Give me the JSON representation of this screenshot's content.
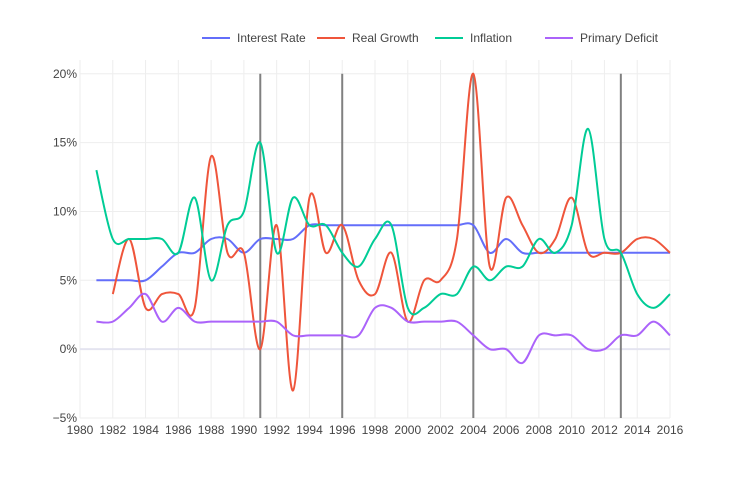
{
  "chart_data": {
    "type": "line",
    "title": "",
    "xlabel": "",
    "ylabel": "",
    "xlim": [
      1980,
      2016
    ],
    "ylim": [
      -5,
      21
    ],
    "x_ticks": [
      1980,
      1982,
      1984,
      1986,
      1988,
      1990,
      1992,
      1994,
      1996,
      1998,
      2000,
      2002,
      2004,
      2006,
      2008,
      2010,
      2012,
      2014,
      2016
    ],
    "y_ticks": [
      -5,
      0,
      5,
      10,
      15,
      20
    ],
    "y_tick_suffix": "%",
    "grid": true,
    "legend_position": "top-right",
    "vertical_lines": [
      1991,
      1996,
      2004,
      2013
    ],
    "vertical_line_color": "#808080",
    "series": [
      {
        "name": "Interest Rate",
        "color": "#636efa",
        "x": [
          1981,
          1982,
          1983,
          1984,
          1985,
          1986,
          1987,
          1988,
          1989,
          1990,
          1991,
          1992,
          1993,
          1994,
          1995,
          1996,
          1997,
          1998,
          1999,
          2000,
          2001,
          2002,
          2003,
          2004,
          2005,
          2006,
          2007,
          2008,
          2009,
          2010,
          2011,
          2012,
          2013,
          2014,
          2015,
          2016
        ],
        "values": [
          5,
          5,
          5,
          5,
          6,
          7,
          7,
          8,
          8,
          7,
          8,
          8,
          8,
          9,
          9,
          9,
          9,
          9,
          9,
          9,
          9,
          9,
          9,
          9,
          7,
          8,
          7,
          7,
          7,
          7,
          7,
          7,
          7,
          7,
          7,
          7
        ]
      },
      {
        "name": "Real Growth",
        "color": "#ef553b",
        "x": [
          1982,
          1983,
          1984,
          1985,
          1986,
          1987,
          1988,
          1989,
          1990,
          1991,
          1992,
          1993,
          1994,
          1995,
          1996,
          1997,
          1998,
          1999,
          2000,
          2001,
          2002,
          2003,
          2004,
          2005,
          2006,
          2007,
          2008,
          2009,
          2010,
          2011,
          2012,
          2013,
          2014,
          2015,
          2016
        ],
        "values": [
          4,
          8,
          3,
          4,
          4,
          3,
          14,
          7,
          7,
          0,
          9,
          -3,
          11,
          7,
          9,
          5,
          4,
          7,
          2,
          5,
          5,
          8,
          20,
          6,
          11,
          9,
          7,
          8,
          11,
          7,
          7,
          7,
          8,
          8,
          7
        ]
      },
      {
        "name": "Inflation",
        "color": "#00cc96",
        "x": [
          1981,
          1982,
          1983,
          1984,
          1985,
          1986,
          1987,
          1988,
          1989,
          1990,
          1991,
          1992,
          1993,
          1994,
          1995,
          1996,
          1997,
          1998,
          1999,
          2000,
          2001,
          2002,
          2003,
          2004,
          2005,
          2006,
          2007,
          2008,
          2009,
          2010,
          2011,
          2012,
          2013,
          2014,
          2015,
          2016
        ],
        "values": [
          13,
          8,
          8,
          8,
          8,
          7,
          11,
          5,
          9,
          10,
          15,
          7,
          11,
          9,
          9,
          7,
          6,
          8,
          9,
          3,
          3,
          4,
          4,
          6,
          5,
          6,
          6,
          8,
          7,
          9,
          16,
          8,
          7,
          4,
          3,
          4
        ]
      },
      {
        "name": "Primary Deficit",
        "color": "#ab63fa",
        "x": [
          1981,
          1982,
          1983,
          1984,
          1985,
          1986,
          1987,
          1988,
          1989,
          1990,
          1991,
          1992,
          1993,
          1994,
          1995,
          1996,
          1997,
          1998,
          1999,
          2000,
          2001,
          2002,
          2003,
          2004,
          2005,
          2006,
          2007,
          2008,
          2009,
          2010,
          2011,
          2012,
          2013,
          2014,
          2015,
          2016
        ],
        "values": [
          2,
          2,
          3,
          4,
          2,
          3,
          2,
          2,
          2,
          2,
          2,
          2,
          1,
          1,
          1,
          1,
          1,
          3,
          3,
          2,
          2,
          2,
          2,
          1,
          0,
          0,
          -1,
          1,
          1,
          1,
          0,
          0,
          1,
          1,
          2,
          1
        ]
      }
    ]
  }
}
